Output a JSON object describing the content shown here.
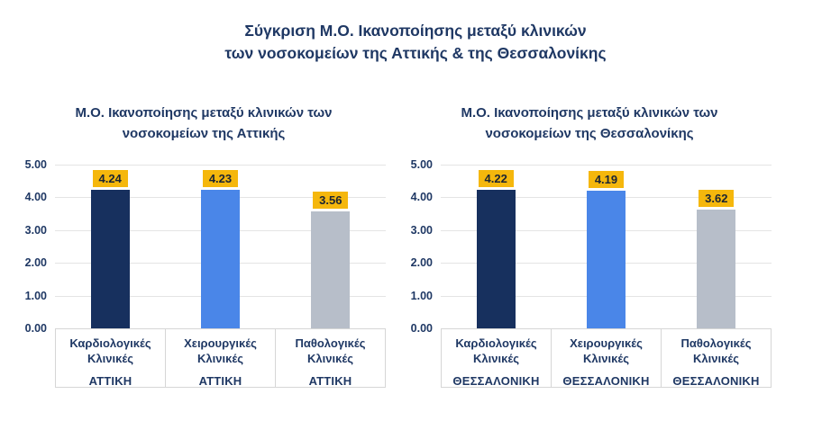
{
  "main_title": {
    "line1": "Σύγκριση Μ.Ο. Ικανοποίησης μεταξύ κλινικών",
    "line2": "των νοσοκομείων της Αττικής & της Θεσσαλονίκης"
  },
  "colors": {
    "background": "#FFFFFF",
    "title_text": "#1F3864",
    "bar_cardiology": "#17305E",
    "bar_surgery": "#4A86E8",
    "bar_pathology": "#B7BEC9",
    "value_label_bg": "#F5B70C",
    "value_label_text": "#1A2433",
    "gridline": "#E4E4E4",
    "table_border": "#D6D6D6"
  },
  "y_axis": {
    "min": 0,
    "max": 5,
    "ticks": [
      "5.00",
      "4.00",
      "3.00",
      "2.00",
      "1.00",
      "0.00"
    ]
  },
  "chart_data": [
    {
      "type": "bar",
      "title_line1": "Μ.Ο. Ικανοποίησης μεταξύ κλινικών των",
      "title_line2": "νοσοκομείων της Αττικής",
      "ylim": [
        0,
        5
      ],
      "grid": true,
      "legend": "none",
      "values": [
        4.24,
        4.23,
        3.56
      ],
      "value_labels": [
        "4.24",
        "4.23",
        "3.56"
      ],
      "categories": [
        {
          "name_line1": "Καρδιολογικές",
          "name_line2": "Κλινικές",
          "region": "ΑΤΤΙΚΗ"
        },
        {
          "name_line1": "Χειρουργικές",
          "name_line2": "Κλινικές",
          "region": "ΑΤΤΙΚΗ"
        },
        {
          "name_line1": "Παθολογικές",
          "name_line2": "Κλινικές",
          "region": "ΑΤΤΙΚΗ"
        }
      ]
    },
    {
      "type": "bar",
      "title_line1": "Μ.Ο. Ικανοποίησης μεταξύ κλινικών των",
      "title_line2": "νοσοκομείων της Θεσσαλονίκης",
      "ylim": [
        0,
        5
      ],
      "grid": true,
      "legend": "none",
      "values": [
        4.22,
        4.19,
        3.62
      ],
      "value_labels": [
        "4.22",
        "4.19",
        "3.62"
      ],
      "categories": [
        {
          "name_line1": "Καρδιολογικές",
          "name_line2": "Κλινικές",
          "region": "ΘΕΣΣΑΛΟΝΙΚΗ"
        },
        {
          "name_line1": "Χειρουργικές",
          "name_line2": "Κλινικές",
          "region": "ΘΕΣΣΑΛΟΝΙΚΗ"
        },
        {
          "name_line1": "Παθολογικές",
          "name_line2": "Κλινικές",
          "region": "ΘΕΣΣΑΛΟΝΙΚΗ"
        }
      ]
    }
  ]
}
